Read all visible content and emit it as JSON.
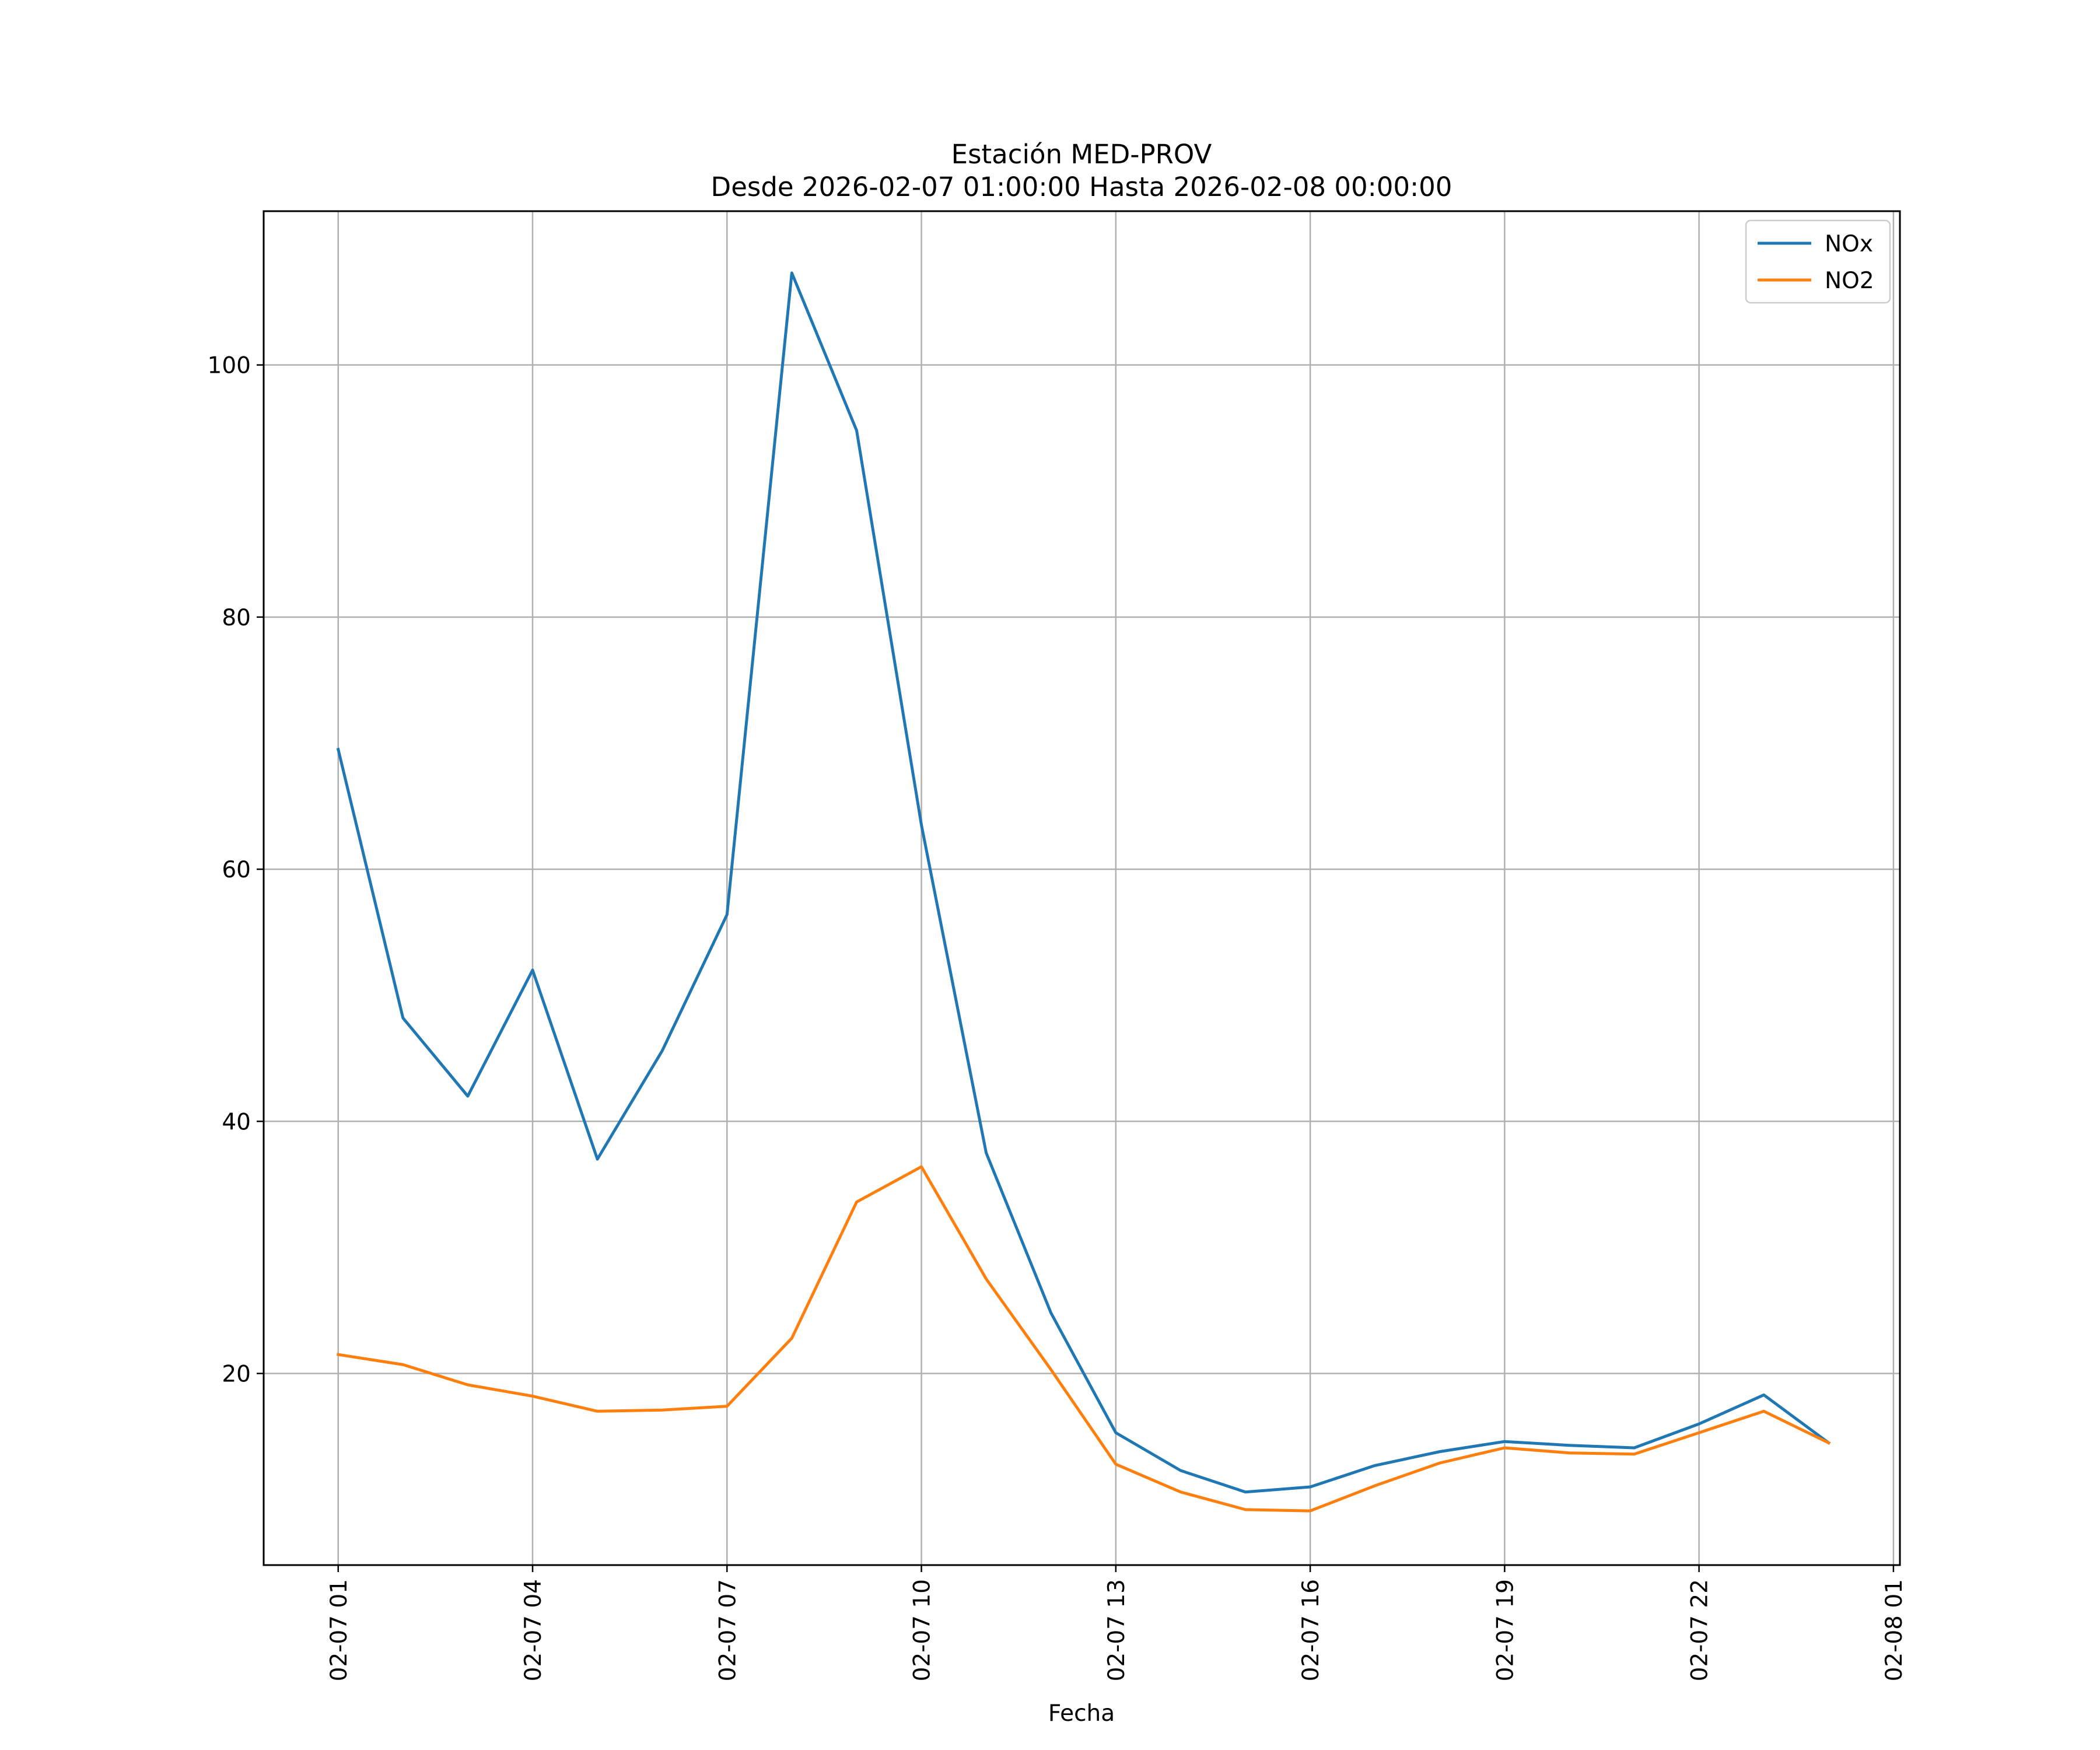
{
  "chart_data": {
    "type": "line",
    "title": "Estación MED-PROV",
    "subtitle": "Desde 2026-02-07 01:00:00 Hasta 2026-02-08 00:00:00",
    "xlabel": "Fecha",
    "ylabel": "",
    "x": [
      "2026-02-07 01:00",
      "2026-02-07 02:00",
      "2026-02-07 03:00",
      "2026-02-07 04:00",
      "2026-02-07 05:00",
      "2026-02-07 06:00",
      "2026-02-07 07:00",
      "2026-02-07 08:00",
      "2026-02-07 09:00",
      "2026-02-07 10:00",
      "2026-02-07 11:00",
      "2026-02-07 12:00",
      "2026-02-07 13:00",
      "2026-02-07 14:00",
      "2026-02-07 15:00",
      "2026-02-07 16:00",
      "2026-02-07 17:00",
      "2026-02-07 18:00",
      "2026-02-07 19:00",
      "2026-02-07 20:00",
      "2026-02-07 21:00",
      "2026-02-07 22:00",
      "2026-02-07 23:00",
      "2026-02-08 00:00"
    ],
    "series": [
      {
        "name": "NOx",
        "color": "#1f77b4",
        "values": [
          69.5,
          48.2,
          42.0,
          52.0,
          37.0,
          45.6,
          56.4,
          107.3,
          94.8,
          63.5,
          37.5,
          24.8,
          15.3,
          12.3,
          10.6,
          11.0,
          12.7,
          13.8,
          14.6,
          14.3,
          14.1,
          16.0,
          18.3,
          14.5
        ]
      },
      {
        "name": "NO2",
        "color": "#ff7f0e",
        "values": [
          21.5,
          20.7,
          19.1,
          18.2,
          17.0,
          17.1,
          17.4,
          22.8,
          33.6,
          36.4,
          27.5,
          20.3,
          12.8,
          10.6,
          9.2,
          9.1,
          11.1,
          12.9,
          14.1,
          13.7,
          13.6,
          15.3,
          17.0,
          14.5
        ]
      }
    ],
    "xticks": [
      "02-07 01",
      "02-07 04",
      "02-07 07",
      "02-07 10",
      "02-07 13",
      "02-07 16",
      "02-07 19",
      "02-07 22",
      "02-08 01"
    ],
    "xtick_hours": [
      0,
      3,
      6,
      9,
      12,
      15,
      18,
      21,
      24
    ],
    "yticks": [
      20,
      40,
      60,
      80,
      100
    ],
    "xlim_hours": [
      -1.15,
      24.1
    ],
    "ylim": [
      4.8,
      112.2
    ],
    "grid": true,
    "legend": "top-right"
  }
}
